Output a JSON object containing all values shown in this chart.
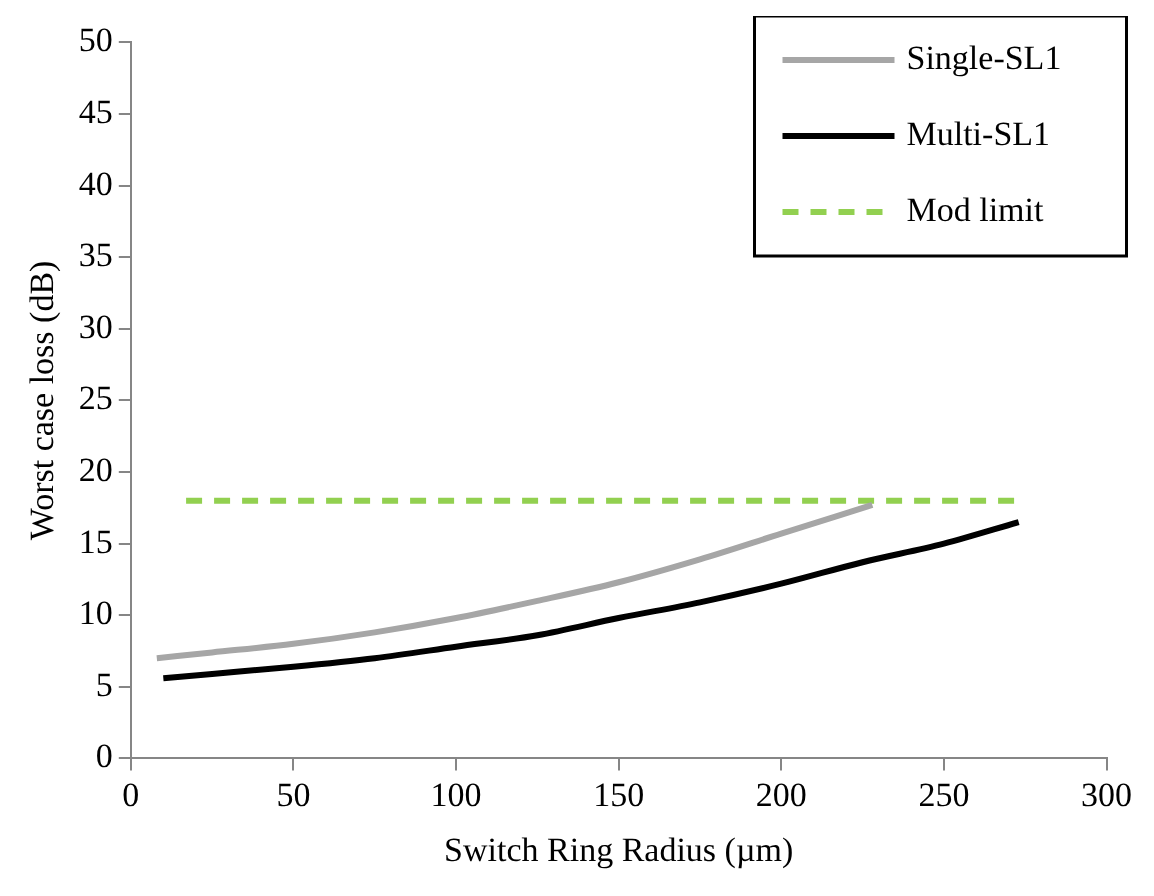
{
  "chart_data": {
    "type": "line",
    "xlabel": "Switch Ring Radius (µm)",
    "ylabel": "Worst case loss (dB)",
    "xlim": [
      0,
      300
    ],
    "xticks": [
      0,
      50,
      100,
      150,
      200,
      250,
      300
    ],
    "ylim": [
      0,
      50
    ],
    "yticks": [
      0,
      5,
      10,
      15,
      20,
      25,
      30,
      35,
      40,
      45,
      50
    ],
    "grid": false,
    "legend": "top right",
    "marker": "none",
    "series": [
      {
        "name": "Single-SL1",
        "color": "#a6a6a6",
        "line_style": "solid",
        "x": [
          8,
          25,
          50,
          75,
          100,
          125,
          150,
          175,
          200,
          228
        ],
        "values": [
          7.0,
          7.4,
          8.0,
          8.8,
          9.8,
          11.0,
          12.3,
          13.9,
          15.7,
          17.7
        ]
      },
      {
        "name": "Multi-SL1",
        "color": "#000000",
        "line_style": "solid",
        "x": [
          10,
          25,
          50,
          75,
          100,
          125,
          150,
          175,
          200,
          225,
          250,
          273
        ],
        "values": [
          5.6,
          5.9,
          6.4,
          7.0,
          7.8,
          8.6,
          9.8,
          10.9,
          12.2,
          13.7,
          15.0,
          16.5
        ]
      },
      {
        "name": "Mod limit",
        "color": "#92d050",
        "line_style": "dashed",
        "x": [
          17,
          273
        ],
        "values": [
          18,
          18
        ]
      }
    ]
  }
}
